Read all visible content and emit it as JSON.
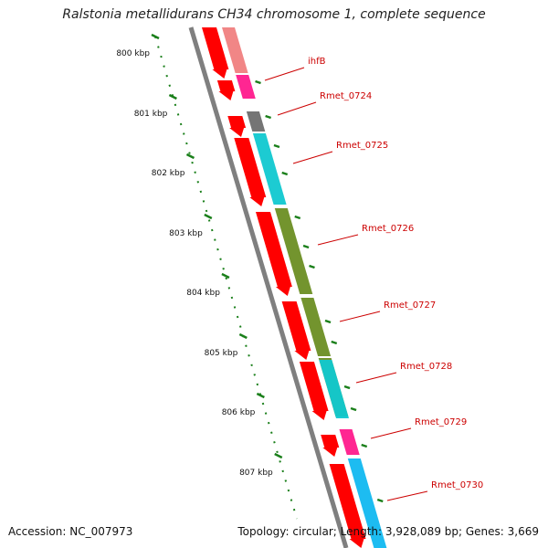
{
  "title": "Ralstonia metallidurans CH34 chromosome 1, complete sequence",
  "footer": {
    "accession": "Accession: NC_007973",
    "summary": "Topology: circular; Length: 3,928,089 bp; Genes: 3,669"
  },
  "colors": {
    "backbone": "#7f7f7f",
    "tick": "#1a7f1a",
    "label": "#cc0000",
    "forward_cds": "#ff0000",
    "cog_pink": "#ff1a8c",
    "cog_light_pink": "#f08080",
    "cog_gray": "#6e6e6e",
    "cog_cyan": "#10c8d0",
    "cog_olive": "#6b8e23",
    "cog_blue": "#11b8f0"
  },
  "ruler": {
    "ticks": [
      {
        "label": "800 kbp"
      },
      {
        "label": "801 kbp"
      },
      {
        "label": "802 kbp"
      },
      {
        "label": "803 kbp"
      },
      {
        "label": "804 kbp"
      },
      {
        "label": "805 kbp"
      },
      {
        "label": "806 kbp"
      },
      {
        "label": "807 kbp"
      }
    ]
  },
  "genes": [
    {
      "label": "ihfB",
      "cog_color": "pink"
    },
    {
      "label": "Rmet_0724",
      "cog_color": "gray"
    },
    {
      "label": "Rmet_0725",
      "cog_color": "cyan"
    },
    {
      "label": "Rmet_0726",
      "cog_color": "olive"
    },
    {
      "label": "Rmet_0727",
      "cog_color": "olive"
    },
    {
      "label": "Rmet_0728",
      "cog_color": "cyan"
    },
    {
      "label": "Rmet_0729",
      "cog_color": "pink"
    },
    {
      "label": "Rmet_0730",
      "cog_color": "blue"
    }
  ]
}
